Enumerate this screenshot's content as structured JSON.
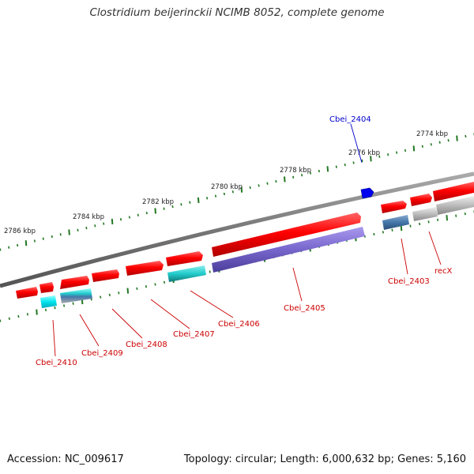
{
  "title": "Clostridium beijerinckii NCIMB 8052, complete genome",
  "footer": {
    "accession": "Accession: NC_009617",
    "summary": "Topology: circular; Length: 6,000,632 bp; Genes: 5,160"
  },
  "scale_labels": [
    "2774 kbp",
    "2776 kbp",
    "2778 kbp",
    "2780 kbp",
    "2782 kbp",
    "2784 kbp",
    "2786 kbp"
  ],
  "gene_labels": [
    {
      "text": "Cbei_2404",
      "color": "#0000cc"
    },
    {
      "text": "Cbei_2403",
      "color": "#cc0000"
    },
    {
      "text": "recX",
      "color": "#cc0000"
    },
    {
      "text": "Cbei_2405",
      "color": "#cc0000"
    },
    {
      "text": "Cbei_2406",
      "color": "#cc0000"
    },
    {
      "text": "Cbei_2407",
      "color": "#cc0000"
    },
    {
      "text": "Cbei_2408",
      "color": "#cc0000"
    },
    {
      "text": "Cbei_2409",
      "color": "#cc0000"
    },
    {
      "text": "Cbei_2410",
      "color": "#cc0000"
    }
  ],
  "colors": {
    "cds": "#ff0000",
    "rna": "#2a6fd6",
    "gene_teal": "#22cccc",
    "gene_purple": "#7766cc",
    "gene_steelblue": "#4477aa",
    "gene_grey": "#bbbbbb",
    "backbone": "#777777",
    "tick": "#227722"
  }
}
